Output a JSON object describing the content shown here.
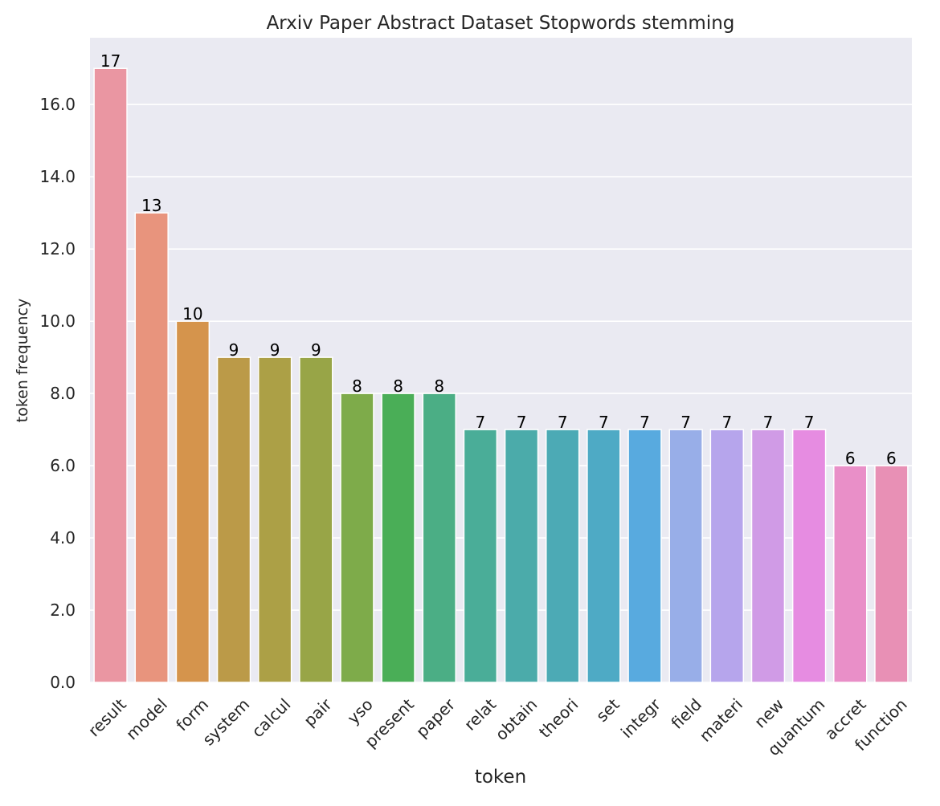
{
  "chart_data": {
    "type": "bar",
    "title": "Arxiv Paper Abstract Dataset Stopwords stemming",
    "xlabel": "token",
    "ylabel": "token frequency",
    "categories": [
      "result",
      "model",
      "form",
      "system",
      "calcul",
      "pair",
      "yso",
      "present",
      "paper",
      "relat",
      "obtain",
      "theori",
      "set",
      "integr",
      "field",
      "materi",
      "new",
      "quantum",
      "accret",
      "function"
    ],
    "values": [
      17,
      13,
      10,
      9,
      9,
      9,
      8,
      8,
      8,
      7,
      7,
      7,
      7,
      7,
      7,
      7,
      7,
      7,
      6,
      6
    ],
    "data_labels": [
      "17",
      "13",
      "10",
      "9",
      "9",
      "9",
      "8",
      "8",
      "8",
      "7",
      "7",
      "7",
      "7",
      "7",
      "7",
      "7",
      "7",
      "7",
      "6",
      "6"
    ],
    "colors": [
      "#ea96a2",
      "#e8947d",
      "#d5944c",
      "#bb9a48",
      "#aca046",
      "#98a547",
      "#7eab4a",
      "#4aae57",
      "#4bae85",
      "#4aad98",
      "#4babaa",
      "#4caab5",
      "#4eaac5",
      "#58aadf",
      "#98aee8",
      "#b6a5ec",
      "#d09be6",
      "#e68ce1",
      "#e98fc8",
      "#e890b5"
    ],
    "yticks": [
      0,
      2,
      4,
      6,
      8,
      10,
      12,
      14,
      16
    ],
    "ytick_labels": [
      "0.0",
      "2.0",
      "4.0",
      "6.0",
      "8.0",
      "10.0",
      "12.0",
      "14.0",
      "16.0"
    ],
    "ylim": [
      0,
      17.85
    ],
    "grid": true,
    "background": "#eaeaf2",
    "grid_color": "#ffffff"
  }
}
